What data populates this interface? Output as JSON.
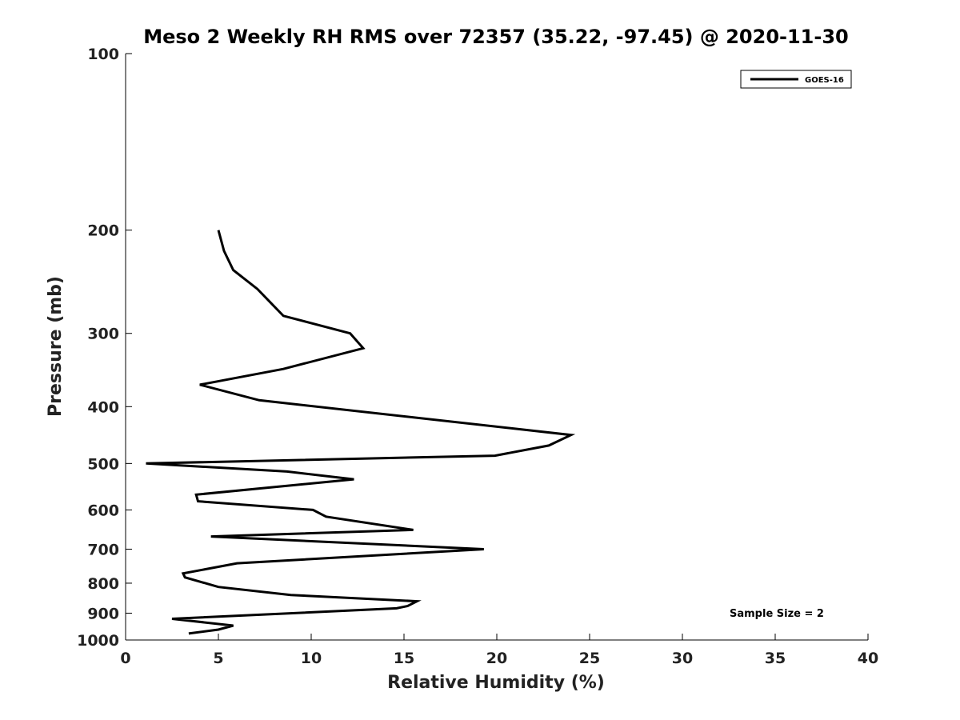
{
  "chart_data": {
    "type": "line",
    "title": "Meso 2 Weekly RH RMS over 72357 (35.22, -97.45) @ 2020-11-30",
    "xlabel": "Relative Humidity (%)",
    "ylabel": "Pressure (mb)",
    "xlim": [
      0,
      40
    ],
    "ylim": [
      100,
      1000
    ],
    "yscale": "log",
    "y_reversed": true,
    "grid": false,
    "xticks": [
      0,
      5,
      10,
      15,
      20,
      25,
      30,
      35,
      40
    ],
    "yticks": [
      100,
      200,
      300,
      400,
      500,
      600,
      700,
      800,
      900,
      1000
    ],
    "legend_position": "top-right",
    "annotation": "Sample Size = 2",
    "series": [
      {
        "name": "GOES-16",
        "color": "#000000",
        "points": [
          [
            5.0,
            200
          ],
          [
            5.3,
            217
          ],
          [
            5.8,
            234
          ],
          [
            7.1,
            252
          ],
          [
            8.5,
            280
          ],
          [
            12.1,
            300
          ],
          [
            12.8,
            318
          ],
          [
            8.5,
            345
          ],
          [
            4.0,
            367
          ],
          [
            7.2,
            390
          ],
          [
            24.0,
            447
          ],
          [
            22.8,
            466
          ],
          [
            19.9,
            485
          ],
          [
            1.1,
            500
          ],
          [
            8.7,
            516
          ],
          [
            12.3,
            532
          ],
          [
            3.8,
            565
          ],
          [
            3.9,
            580
          ],
          [
            10.1,
            600
          ],
          [
            10.8,
            616
          ],
          [
            15.5,
            649
          ],
          [
            4.6,
            666
          ],
          [
            19.3,
            700
          ],
          [
            6.0,
            740
          ],
          [
            3.1,
            770
          ],
          [
            3.2,
            782
          ],
          [
            5.0,
            812
          ],
          [
            8.9,
            838
          ],
          [
            15.7,
            859
          ],
          [
            15.2,
            875
          ],
          [
            14.6,
            883
          ],
          [
            2.5,
            920
          ],
          [
            5.8,
            945
          ],
          [
            5.0,
            960
          ],
          [
            3.4,
            975
          ]
        ]
      }
    ]
  }
}
